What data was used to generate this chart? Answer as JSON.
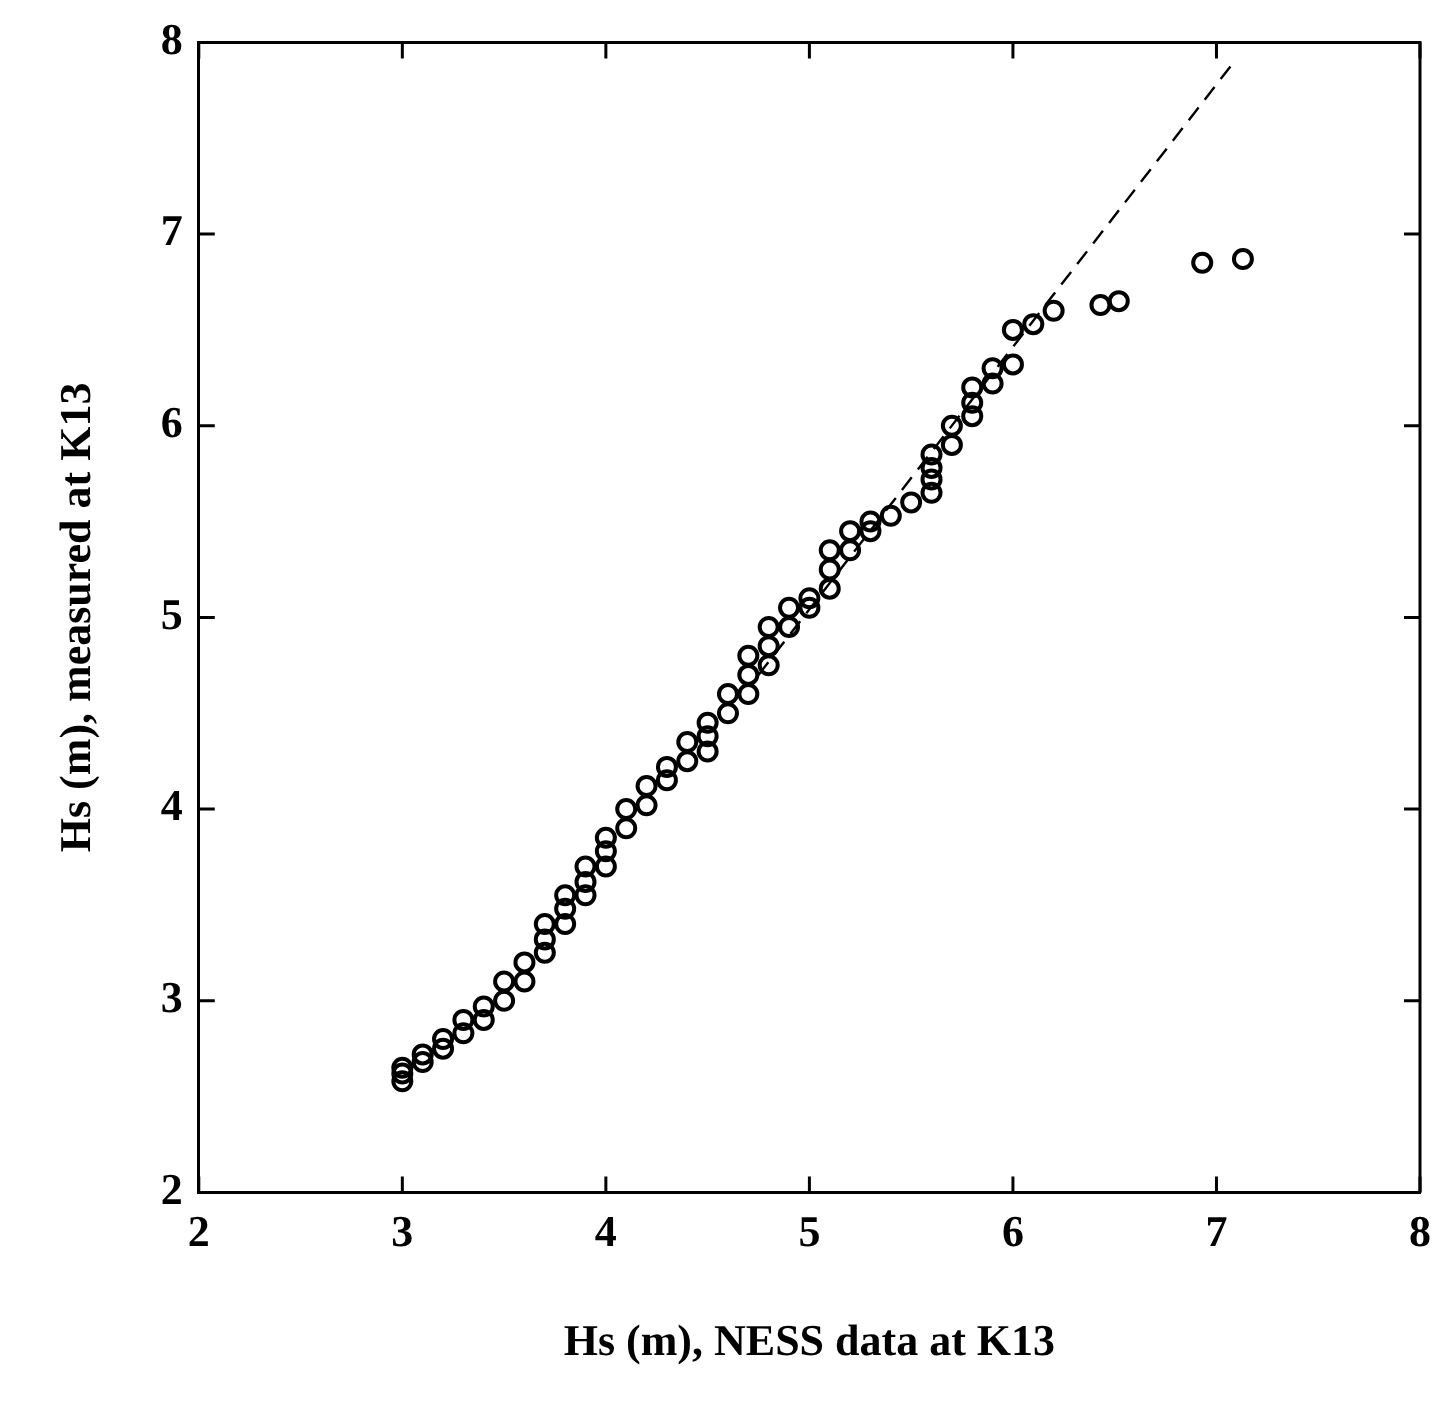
{
  "chart_data": {
    "type": "scatter",
    "xlabel": "Hs (m), NESS data at K13",
    "ylabel": "Hs (m), measured at K13",
    "xlim": [
      2,
      8
    ],
    "ylim": [
      2,
      8
    ],
    "xticks": [
      2,
      3,
      4,
      5,
      6,
      7,
      8
    ],
    "yticks": [
      2,
      3,
      4,
      5,
      6,
      7,
      8
    ],
    "grid": false,
    "legend": false,
    "marker": "circle",
    "series": [
      {
        "color": "#000000",
        "x": [
          3.0,
          3.0,
          3.0,
          3.1,
          3.1,
          3.2,
          3.2,
          3.3,
          3.3,
          3.4,
          3.4,
          3.5,
          3.5,
          3.6,
          3.6,
          3.7,
          3.7,
          3.7,
          3.8,
          3.8,
          3.8,
          3.9,
          3.9,
          3.9,
          4.0,
          4.0,
          4.0,
          4.1,
          4.1,
          4.2,
          4.2,
          4.3,
          4.3,
          4.4,
          4.4,
          4.5,
          4.5,
          4.5,
          4.6,
          4.6,
          4.7,
          4.7,
          4.7,
          4.8,
          4.8,
          4.8,
          4.9,
          4.9,
          5.0,
          5.0,
          5.1,
          5.1,
          5.1,
          5.2,
          5.2,
          5.3,
          5.3,
          5.4,
          5.5,
          5.6,
          5.6,
          5.6,
          5.6,
          5.7,
          5.7,
          5.8,
          5.8,
          5.8,
          5.9,
          5.9,
          6.0,
          6.0,
          6.1,
          6.2,
          6.43,
          6.52,
          6.93,
          7.13
        ],
        "values": [
          2.58,
          2.62,
          2.65,
          2.68,
          2.72,
          2.75,
          2.8,
          2.83,
          2.9,
          2.9,
          2.97,
          3.0,
          3.1,
          3.1,
          3.2,
          3.25,
          3.32,
          3.4,
          3.4,
          3.48,
          3.55,
          3.55,
          3.62,
          3.7,
          3.7,
          3.78,
          3.85,
          3.9,
          4.0,
          4.02,
          4.12,
          4.15,
          4.22,
          4.25,
          4.35,
          4.3,
          4.38,
          4.45,
          4.5,
          4.6,
          4.6,
          4.7,
          4.8,
          4.75,
          4.85,
          4.95,
          4.95,
          5.05,
          5.05,
          5.1,
          5.15,
          5.25,
          5.35,
          5.35,
          5.45,
          5.45,
          5.5,
          5.53,
          5.6,
          5.65,
          5.72,
          5.78,
          5.85,
          5.9,
          6.0,
          6.05,
          6.12,
          6.2,
          6.22,
          6.3,
          6.32,
          6.5,
          6.53,
          6.6,
          6.63,
          6.65,
          6.85,
          6.87
        ]
      },
      {
        "type": "line",
        "color": "#000000",
        "marker": "none",
        "line_style": "dashed",
        "x": [
          4.75,
          7.08
        ],
        "values": [
          4.7,
          7.89
        ]
      }
    ]
  }
}
